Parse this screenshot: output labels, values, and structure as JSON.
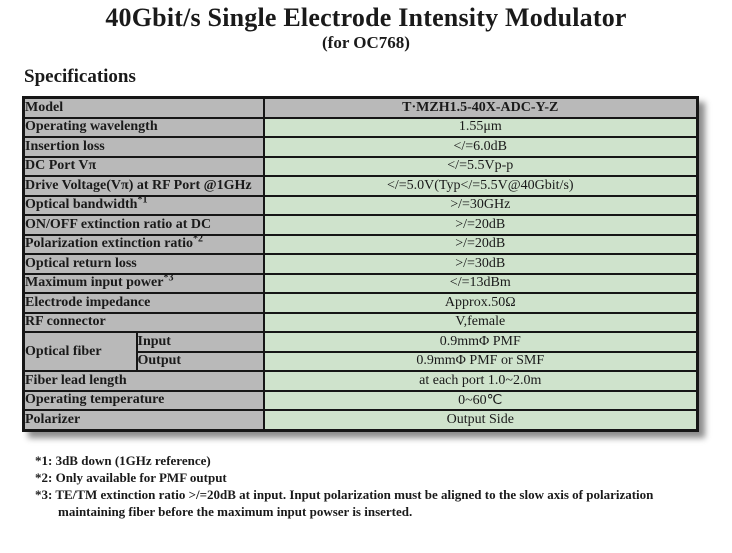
{
  "header": {
    "title": "40Gbit/s Single Electrode Intensity Modulator",
    "subtitle": "(for OC768)",
    "section_heading": "Specifications"
  },
  "table": {
    "rows": [
      {
        "label": "Model",
        "value": "T·MZH1.5-40X-ADC-Y-Z"
      },
      {
        "label": "Operating wavelength",
        "value": "1.55μm"
      },
      {
        "label": "Insertion loss",
        "value": "</=6.0dB"
      },
      {
        "label": "DC Port Vπ",
        "value": "</=5.5Vp-p"
      },
      {
        "label": "Drive Voltage(Vπ) at RF Port @1GHz",
        "value": "</=5.0V(Typ</=5.5V@40Gbit/s)"
      },
      {
        "label": "Optical bandwidth",
        "sup": "*1",
        "value": ">/=30GHz"
      },
      {
        "label": "ON/OFF extinction ratio at DC",
        "value": ">/=20dB"
      },
      {
        "label": "Polarization extinction ratio",
        "sup": "*2",
        "value": ">/=20dB"
      },
      {
        "label": "Optical return loss",
        "value": ">/=30dB"
      },
      {
        "label": "Maximum input power",
        "sup": "*3",
        "value": "</=13dBm"
      },
      {
        "label": "Electrode impedance",
        "value": "Approx.50Ω"
      },
      {
        "label": "RF connector",
        "value": "V,female"
      },
      {
        "label": "Optical fiber",
        "sublabel": "Input",
        "value": "0.9mmΦ PMF"
      },
      {
        "sublabel": "Output",
        "value": "0.9mmΦ PMF or SMF"
      },
      {
        "label": "Fiber lead length",
        "value": "at each port 1.0~2.0m"
      },
      {
        "label": "Operating temperature",
        "value": "0~60℃"
      },
      {
        "label": "Polarizer",
        "value": "Output Side"
      }
    ]
  },
  "footnotes": [
    {
      "text": "*1: 3dB down (1GHz reference)"
    },
    {
      "text": "*2: Only available for PMF output"
    },
    {
      "text": "*3: TE/TM extinction ratio >/=20dB at input. Input polarization must be aligned to the slow axis of polarization"
    },
    {
      "text": "maintaining fiber before the maximum input powser is inserted."
    }
  ],
  "colors": {
    "label_cell_bg": "#b9b9b9",
    "value_cell_bg": "#cfe3cc",
    "model_value_bg": "#b9b9b9",
    "border": "#161616",
    "text": "#1a1a1a"
  }
}
